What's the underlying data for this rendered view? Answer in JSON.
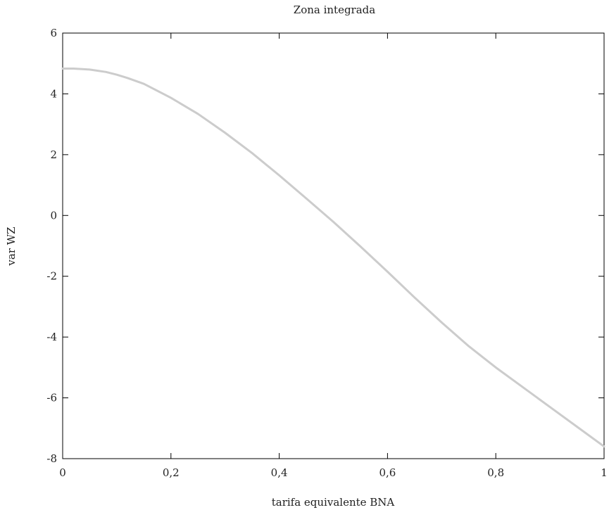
{
  "chart_data": {
    "type": "line",
    "title": "Zona integrada",
    "xlabel": "tarifa equivalente BNA",
    "ylabel": "var WZ",
    "xlim": [
      0,
      1
    ],
    "ylim": [
      -8,
      6
    ],
    "grid": false,
    "xticks": [
      0,
      0.2,
      0.4,
      0.6,
      0.8,
      1
    ],
    "xtick_labels": [
      "0",
      "0,2",
      "0,4",
      "0,6",
      "0,8",
      "1"
    ],
    "yticks": [
      -8,
      -6,
      -4,
      -2,
      0,
      2,
      4,
      6
    ],
    "ytick_labels": [
      "-8",
      "-6",
      "-4",
      "-2",
      "0",
      "2",
      "4",
      "6"
    ],
    "series": [
      {
        "color": "#cccccc",
        "x": [
          0,
          0.02,
          0.05,
          0.08,
          0.1,
          0.12,
          0.15,
          0.2,
          0.25,
          0.3,
          0.35,
          0.4,
          0.45,
          0.5,
          0.55,
          0.6,
          0.65,
          0.7,
          0.75,
          0.8,
          0.85,
          0.9,
          0.95,
          1.0
        ],
        "y": [
          4.83,
          4.83,
          4.8,
          4.72,
          4.63,
          4.52,
          4.33,
          3.87,
          3.34,
          2.72,
          2.05,
          1.32,
          0.56,
          -0.21,
          -1.02,
          -1.85,
          -2.7,
          -3.52,
          -4.3,
          -5.0,
          -5.65,
          -6.3,
          -6.95,
          -7.6
        ]
      }
    ]
  }
}
